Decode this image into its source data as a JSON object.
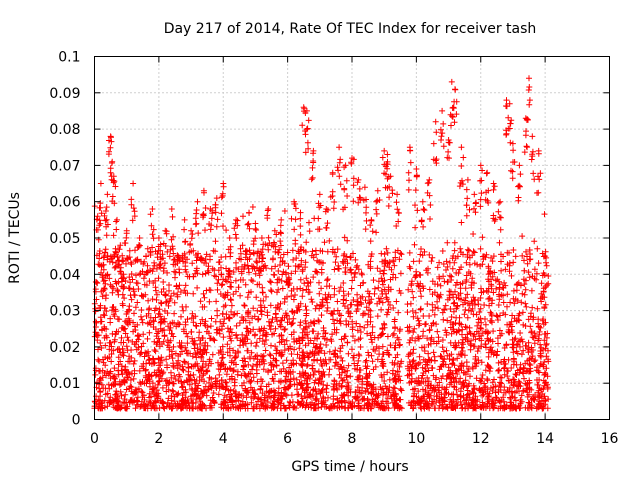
{
  "chart_data": {
    "type": "scatter",
    "title": "Day 217 of 2014, Rate Of TEC Index for receiver tash",
    "xlabel": "GPS time / hours",
    "ylabel": "ROTI / TECUs",
    "xlim": [
      0,
      16
    ],
    "ylim": [
      0,
      0.1
    ],
    "x_ticks": [
      "0",
      "2",
      "4",
      "6",
      "8",
      "10",
      "12",
      "14",
      "16"
    ],
    "y_ticks": [
      "0",
      "0.01",
      "0.02",
      "0.03",
      "0.04",
      "0.05",
      "0.06",
      "0.07",
      "0.08",
      "0.09",
      "0.1"
    ],
    "grid": true,
    "marker": "+",
    "color": "#ff0000",
    "series": [
      {
        "name": "ROTI",
        "time_range_hours": [
          0,
          14.1
        ],
        "gap_hours": [
          9.55,
          9.72
        ],
        "x": [
          0.1,
          0.2,
          0.3,
          0.4,
          0.5,
          0.55,
          0.6,
          0.7,
          0.8,
          0.9,
          1.0,
          1.2,
          1.4,
          1.6,
          1.8,
          2.0,
          2.2,
          2.4,
          2.6,
          2.8,
          3.0,
          3.2,
          3.4,
          3.6,
          3.8,
          4.0,
          4.2,
          4.4,
          4.6,
          4.8,
          5.0,
          5.2,
          5.4,
          5.6,
          5.8,
          6.0,
          6.2,
          6.4,
          6.5,
          6.6,
          6.8,
          7.0,
          7.2,
          7.4,
          7.6,
          7.8,
          8.0,
          8.2,
          8.4,
          8.6,
          8.8,
          9.0,
          9.1,
          9.2,
          9.4,
          9.8,
          10.0,
          10.2,
          10.4,
          10.6,
          10.8,
          11.0,
          11.1,
          11.2,
          11.4,
          11.6,
          11.8,
          12.0,
          12.2,
          12.4,
          12.6,
          12.8,
          12.9,
          13.0,
          13.2,
          13.4,
          13.5,
          13.6,
          13.8,
          14.0
        ],
        "y": [
          0.056,
          0.065,
          0.045,
          0.062,
          0.078,
          0.071,
          0.067,
          0.055,
          0.048,
          0.04,
          0.052,
          0.065,
          0.05,
          0.045,
          0.058,
          0.05,
          0.052,
          0.058,
          0.045,
          0.055,
          0.052,
          0.06,
          0.063,
          0.058,
          0.061,
          0.065,
          0.05,
          0.055,
          0.048,
          0.057,
          0.054,
          0.05,
          0.058,
          0.052,
          0.055,
          0.046,
          0.06,
          0.057,
          0.086,
          0.085,
          0.074,
          0.062,
          0.058,
          0.068,
          0.075,
          0.07,
          0.072,
          0.066,
          0.064,
          0.055,
          0.063,
          0.074,
          0.073,
          0.067,
          0.062,
          0.075,
          0.069,
          0.06,
          0.066,
          0.082,
          0.085,
          0.077,
          0.093,
          0.091,
          0.075,
          0.066,
          0.062,
          0.07,
          0.068,
          0.065,
          0.06,
          0.088,
          0.087,
          0.076,
          0.07,
          0.083,
          0.094,
          0.078,
          0.074,
          0.045
        ]
      }
    ],
    "typical_band": [
      0.003,
      0.045
    ]
  }
}
